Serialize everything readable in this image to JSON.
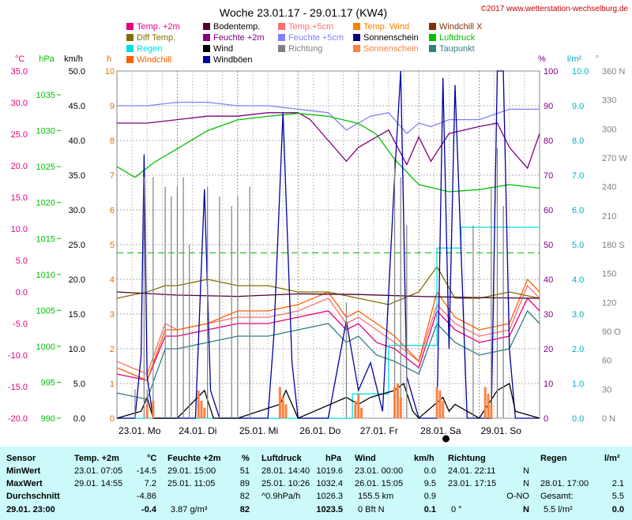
{
  "chart_data": {
    "type": "line",
    "title": "Woche 23.01.17 - 29.01.17 (KW4)",
    "copyright": "©2017 www.wetterstation-wechselburg.de",
    "x_labels": [
      "23.01. Mo",
      "24.01. Di",
      "25.01. Mi",
      "26.01. Do",
      "27.01. Fr",
      "28.01. Sa",
      "29.01. So"
    ],
    "axes": [
      {
        "unit": "°C",
        "color": "#e6007e",
        "ticks": [
          "35.0",
          "30.0",
          "25.0",
          "20.0",
          "15.0",
          "10.0",
          "5.0",
          "0.0",
          "-5.0",
          "-10.0",
          "-15.0",
          "-20.0"
        ],
        "ylim": [
          -20,
          35
        ]
      },
      {
        "unit": "hPa",
        "color": "#00c000",
        "ticks": [
          "1035",
          "1030",
          "1025",
          "1020",
          "1015",
          "1010",
          "1005",
          "1000",
          "995",
          "990"
        ],
        "ylim": [
          990,
          1038.3
        ]
      },
      {
        "unit": "km/h",
        "color": "#000000",
        "ticks": [
          "50.0",
          "45.0",
          "40.0",
          "35.0",
          "30.0",
          "25.0",
          "20.0",
          "15.0",
          "10.0",
          "5.0",
          "0.0"
        ],
        "ylim": [
          0,
          50
        ]
      },
      {
        "unit": "h",
        "color": "#e07000",
        "ticks": [
          "10",
          "9",
          "8",
          "7",
          "6",
          "5",
          "4",
          "3",
          "2",
          "1",
          "0"
        ],
        "ylim": [
          0,
          10
        ]
      },
      {
        "unit": "%",
        "color": "#800080",
        "ticks": [
          "100",
          "90",
          "80",
          "70",
          "60",
          "50",
          "40",
          "30",
          "20",
          "10",
          "0"
        ],
        "ylim": [
          0,
          100
        ]
      },
      {
        "unit": "l/m²",
        "color": "#00b0c0",
        "ticks": [
          "10.0",
          "9.0",
          "8.0",
          "7.0",
          "6.0",
          "5.0",
          "4.0",
          "3.0",
          "2.0",
          "1.0",
          "0.0"
        ],
        "ylim": [
          0,
          10
        ]
      },
      {
        "unit": "°",
        "color": "#808080",
        "ticks": [
          "360 N",
          "330",
          "300",
          "270 W",
          "240",
          "210",
          "180 S",
          "150",
          "120",
          "90 O",
          "60",
          "30",
          "0 N"
        ],
        "ylim": [
          0,
          360
        ]
      }
    ],
    "legend": [
      {
        "name": "Temp. +2m",
        "color": "#e6007e"
      },
      {
        "name": "Bodentemp.",
        "color": "#500030"
      },
      {
        "name": "Temp.+5cm",
        "color": "#ff7070"
      },
      {
        "name": "Temp. Wind",
        "color": "#ff8000"
      },
      {
        "name": "Windchill X",
        "color": "#803000"
      },
      {
        "name": "Diff Temp.",
        "color": "#807000"
      },
      {
        "name": "Feuchte +2m",
        "color": "#800080"
      },
      {
        "name": "Feuchte +5cm",
        "color": "#8080ff"
      },
      {
        "name": "Sonnenschein",
        "color": "#000080"
      },
      {
        "name": "Luftdruck",
        "color": "#00c000"
      },
      {
        "name": "Regen",
        "color": "#00e0e0"
      },
      {
        "name": "Wind",
        "color": "#000000"
      },
      {
        "name": "Richtung",
        "color": "#808080"
      },
      {
        "name": "Sonnenschein",
        "color": "#ff8040"
      },
      {
        "name": "Taupunkt",
        "color": "#308080"
      },
      {
        "name": "Windchill",
        "color": "#ff6000"
      },
      {
        "name": "Windböen",
        "color": "#0000a0"
      }
    ],
    "series": [
      {
        "name": "Feuchte +5cm",
        "axis": 4,
        "color": "#8080ff",
        "x": [
          0,
          0.2,
          0.5,
          1,
          1.5,
          2,
          2.5,
          3,
          3.5,
          3.8,
          4.2,
          4.5,
          4.8,
          5,
          5.2,
          5.5,
          6,
          6.5,
          7
        ],
        "values": [
          90,
          90,
          90,
          91,
          91,
          90,
          90,
          89,
          88,
          83,
          87,
          88,
          82,
          85,
          84,
          86,
          86,
          89,
          89
        ]
      },
      {
        "name": "Feuchte +2m",
        "axis": 4,
        "color": "#800080",
        "x": [
          0,
          0.5,
          1,
          1.5,
          2,
          2.5,
          3,
          3.2,
          3.5,
          3.8,
          4,
          4.5,
          4.8,
          5,
          5.2,
          5.5,
          6,
          6.3,
          6.5,
          6.8,
          7
        ],
        "values": [
          85,
          85,
          86,
          87,
          87,
          88,
          88,
          86,
          80,
          74,
          78,
          83,
          73,
          81,
          74,
          82,
          84,
          85,
          78,
          72,
          82
        ]
      },
      {
        "name": "Luftdruck",
        "axis": 1,
        "color": "#00c000",
        "x": [
          0,
          0.3,
          0.6,
          1,
          1.5,
          2,
          2.5,
          3,
          3.5,
          4,
          4.3,
          4.6,
          5,
          5.5,
          6,
          6.5,
          7
        ],
        "values": [
          1025.0,
          1023.5,
          1025.5,
          1027.5,
          1030.0,
          1031.5,
          1032.0,
          1032.4,
          1032.0,
          1031.0,
          1029.5,
          1026.0,
          1022.5,
          1021.5,
          1021.8,
          1022.5,
          1022.0
        ]
      },
      {
        "name": "Temp. +2m",
        "axis": 0,
        "color": "#e6007e",
        "x": [
          0,
          0.5,
          0.8,
          1,
          1.5,
          2,
          2.5,
          3,
          3.5,
          3.8,
          4,
          4.3,
          4.6,
          5,
          5.3,
          5.6,
          6,
          6.5,
          6.8,
          7
        ],
        "values": [
          -13,
          -14,
          -7,
          -7,
          -6,
          -5,
          -5,
          -4,
          -3,
          -6,
          -5,
          -8,
          -9,
          -12,
          -3,
          -6,
          -8,
          -7,
          -1,
          -3
        ]
      },
      {
        "name": "Temp.+5cm",
        "axis": 0,
        "color": "#ff7070",
        "x": [
          0,
          0.5,
          0.8,
          1,
          1.5,
          2,
          2.5,
          3,
          3.5,
          3.8,
          4,
          4.3,
          4.6,
          5,
          5.3,
          5.6,
          6,
          6.5,
          6.8,
          7
        ],
        "values": [
          -11,
          -13,
          -5,
          -6,
          -5,
          -4,
          -4,
          -3,
          -1,
          -5,
          -4,
          -6,
          -8,
          -11,
          -2,
          -5,
          -7,
          -6,
          1,
          -1
        ]
      },
      {
        "name": "Windchill",
        "axis": 0,
        "color": "#ff6000",
        "x": [
          0,
          0.5,
          0.8,
          1,
          1.5,
          2,
          2.5,
          3,
          3.5,
          3.8,
          4,
          4.3,
          4.6,
          5,
          5.3,
          5.6,
          6,
          6.5,
          6.8,
          7
        ],
        "values": [
          -12,
          -14,
          -6,
          -6,
          -5,
          -3,
          -3,
          -2,
          0,
          -4,
          -3,
          -5,
          -7,
          -11,
          0,
          -4,
          -6,
          -5,
          2,
          0
        ]
      },
      {
        "name": "Diff Temp.",
        "axis": 0,
        "color": "#807000",
        "x": [
          0,
          0.5,
          0.8,
          1,
          1.5,
          2,
          2.5,
          3,
          3.5,
          4,
          4.5,
          5,
          5.3,
          5.6,
          6,
          6.5,
          7
        ],
        "values": [
          -1,
          0,
          1,
          1,
          2,
          1,
          1,
          0,
          0,
          -1,
          -2,
          0,
          4,
          -1,
          -1,
          0,
          -1
        ]
      },
      {
        "name": "Bodentemp.",
        "axis": 0,
        "color": "#500030",
        "x": [
          0,
          1,
          2,
          3,
          4,
          5,
          6,
          7
        ],
        "values": [
          0,
          -0.5,
          -0.7,
          -0.3,
          -0.4,
          -0.7,
          -0.9,
          -1
        ]
      },
      {
        "name": "Taupunkt",
        "axis": 0,
        "color": "#308080",
        "x": [
          0,
          0.5,
          0.8,
          1,
          1.5,
          2,
          2.5,
          3,
          3.5,
          3.8,
          4,
          4.3,
          4.6,
          5,
          5.3,
          5.6,
          6,
          6.5,
          6.8,
          7
        ],
        "values": [
          -16,
          -17,
          -9,
          -9,
          -8,
          -7,
          -7,
          -6,
          -5,
          -8,
          -7,
          -10,
          -11,
          -13,
          -5,
          -8,
          -10,
          -9,
          -3,
          -5
        ]
      },
      {
        "name": "Regen",
        "axis": 5,
        "color": "#00e0e0",
        "x": [
          0,
          3.5,
          3.9,
          3.9,
          4.5,
          4.5,
          5.3,
          5.3,
          5.7,
          5.7,
          7
        ],
        "values": [
          0,
          0,
          0,
          0.7,
          0.7,
          2.1,
          2.1,
          4.9,
          4.9,
          5.5,
          5.5
        ]
      },
      {
        "name": "Windböen",
        "axis": 2,
        "color": "#0000a0",
        "x": [
          0,
          0.3,
          0.4,
          0.45,
          0.5,
          0.6,
          1,
          1.3,
          1.45,
          1.55,
          1.7,
          2,
          2.5,
          2.6,
          2.75,
          2.9,
          3,
          3.5,
          3.8,
          4,
          4.2,
          4.4,
          4.6,
          4.7,
          4.8,
          5,
          5.3,
          5.4,
          5.5,
          5.6,
          5.8,
          6,
          6.2,
          6.3,
          6.4,
          6.5,
          6.6,
          7
        ],
        "values": [
          0,
          0,
          9,
          38,
          6,
          0,
          0,
          0,
          33,
          4,
          0,
          0,
          0,
          12,
          44,
          8,
          0,
          0,
          14,
          4,
          8,
          1,
          35,
          50,
          6,
          0,
          0,
          49,
          10,
          48,
          0,
          0,
          0,
          50,
          50,
          10,
          0,
          0
        ]
      },
      {
        "name": "Wind",
        "axis": 2,
        "color": "#000000",
        "x": [
          0,
          0.4,
          0.5,
          0.6,
          1,
          1.45,
          1.6,
          2,
          2.7,
          2.8,
          3,
          3.8,
          4,
          4.2,
          4.6,
          4.75,
          4.9,
          5,
          5.4,
          5.5,
          5.6,
          6,
          6.3,
          6.5,
          6.6,
          7
        ],
        "values": [
          0,
          1,
          3,
          0,
          0,
          4,
          0,
          0,
          2,
          4,
          0,
          3,
          2,
          3,
          4,
          5,
          1,
          0,
          3,
          1,
          2,
          0,
          4,
          5,
          1,
          0
        ]
      },
      {
        "name": "Richtung",
        "axis": 6,
        "color": "#808080",
        "x": [
          0.3,
          0.45,
          0.5,
          0.6,
          0.8,
          0.9,
          1.0,
          1.1,
          1.2,
          1.5,
          1.7,
          1.9,
          2.0,
          2.2,
          3.8,
          4.6,
          4.7,
          4.8,
          5.9,
          6.2,
          6.3,
          6.4
        ],
        "values": [
          30,
          250,
          30,
          250,
          240,
          230,
          240,
          250,
          180,
          240,
          230,
          220,
          230,
          240,
          120,
          270,
          250,
          200,
          200,
          240,
          280,
          220
        ]
      },
      {
        "name": "Sonnenschein",
        "axis": 3,
        "color": "#ff8040",
        "x": [
          0.5,
          0.6,
          1.35,
          1.4,
          1.45,
          2.7,
          2.75,
          2.8,
          3.95,
          4.0,
          4.05,
          4.6,
          4.65,
          4.7,
          5.3,
          5.35,
          5.4,
          6.1,
          6.15,
          6.2
        ],
        "values": [
          0.4,
          0.5,
          0.8,
          0.5,
          0.3,
          0.9,
          0.6,
          0.4,
          0.5,
          0.7,
          0.3,
          0.9,
          1.0,
          0.6,
          0.9,
          0.8,
          0.5,
          0.9,
          0.7,
          0.4
        ]
      }
    ],
    "ref_line": {
      "value_hpa": 1013,
      "color": "#00c000"
    }
  },
  "panel": {
    "temp": {
      "header": "Temp. +2m",
      "unit": "°C",
      "min_time": "23.01. 07:05",
      "min_val": "-14.5",
      "max_time": "29.01. 14:55",
      "max_val": "7.2",
      "avg": "-4.86",
      "cur": "-0.4"
    },
    "hum": {
      "header": "Feuchte +2m",
      "unit": "%",
      "min_time": "29.01. 15:00",
      "min_val": "51",
      "max_time": "25.01. 11:05",
      "max_val": "89",
      "avg": "82",
      "cur_extra": "3.87 g/m³",
      "cur": "82"
    },
    "press": {
      "header": "Luftdruck",
      "unit": "hPa",
      "min_time": "28.01. 14:40",
      "min_val": "1019.6",
      "max_time": "25.01. 10:26",
      "max_val": "1032.4",
      "avg_label": "^0.9hPa/h",
      "avg": "1026.3",
      "cur": "1023.5"
    },
    "wind": {
      "header": "Wind",
      "unit": "km/h",
      "min_time": "23.01. 00:00",
      "min_val": "0.0",
      "max_time": "26.01. 15:05",
      "max_val": "9.5",
      "avg_label": "155.5 km",
      "avg": "0.9",
      "cur_label": "0 Bft N",
      "cur": "0.1"
    },
    "dir": {
      "header": "Richtung",
      "min_time": "24.01. 22:11",
      "min_val": "N",
      "max_time": "23.01. 17:15",
      "max_val": "N",
      "avg": "O-NO",
      "cur_label": "0 °",
      "cur": "N"
    },
    "rain": {
      "header": "Regen",
      "unit": "l/m²",
      "max_time": "28.01. 17:00",
      "max_val": "2.1",
      "avg_label": "Gesamt:",
      "avg": "5.5",
      "cur_label": "5.5 l/m²",
      "cur": "0.0"
    },
    "labels": {
      "sensor": "Sensor",
      "min": "MinWert",
      "max": "MaxWert",
      "avg": "Durchschnitt",
      "now": "29.01. 23:00"
    }
  }
}
